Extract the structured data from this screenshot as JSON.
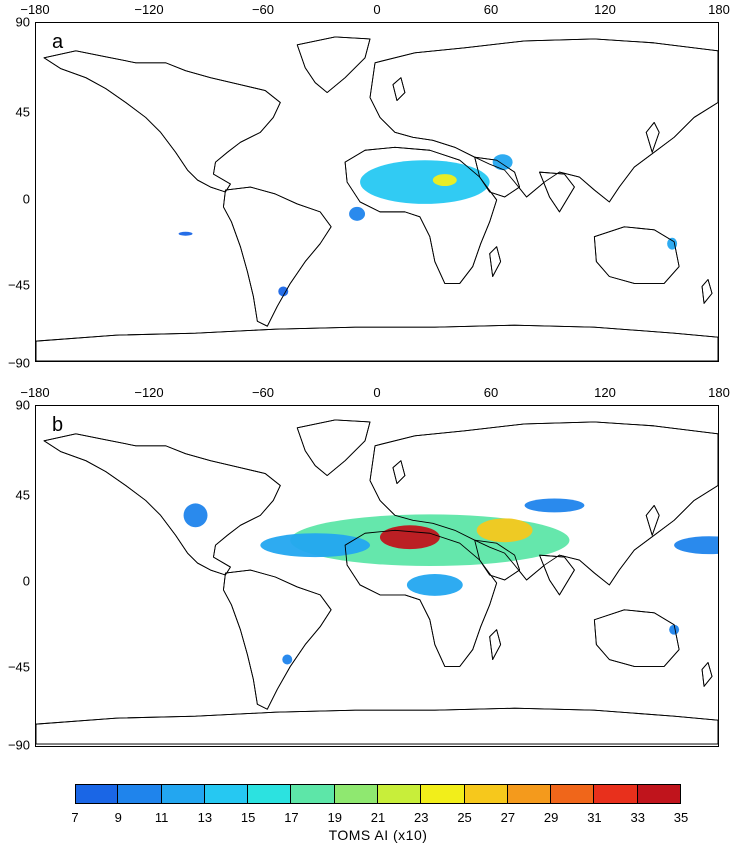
{
  "panels": [
    {
      "letter": "a",
      "x_ticks": [
        "−180",
        "−120",
        "−60",
        "0",
        "60",
        "120",
        "180"
      ],
      "y_ticks": [
        "90",
        "45",
        "0",
        "−45",
        "−90"
      ],
      "features": [
        {
          "region": "Sahara and Sahel",
          "level": 13
        },
        {
          "region": "Lake Chad area",
          "level": 23
        },
        {
          "region": "Arabian Peninsula",
          "level": 11
        },
        {
          "region": "Atlantic west of Africa",
          "level": 9
        },
        {
          "region": "South Atlantic",
          "level": 7
        },
        {
          "region": "Argentina",
          "level": 7
        },
        {
          "region": "Australia",
          "level": 11
        }
      ]
    },
    {
      "letter": "b",
      "x_ticks": [
        "−180",
        "−120",
        "−60",
        "0",
        "60",
        "120",
        "180"
      ],
      "y_ticks": [
        "90",
        "45",
        "0",
        "−45",
        "−90"
      ],
      "features": [
        {
          "region": "Sahara and Sahel",
          "level": 17
        },
        {
          "region": "Mali and Niger",
          "level": 33
        },
        {
          "region": "Arabian Peninsula",
          "level": 25
        },
        {
          "region": "Central Atlantic",
          "level": 11
        },
        {
          "region": "Southern Africa",
          "level": 11
        },
        {
          "region": "Western North America",
          "level": 9
        },
        {
          "region": "Central Asia",
          "level": 9
        },
        {
          "region": "North Pacific",
          "level": 9
        },
        {
          "region": "Argentina",
          "level": 9
        },
        {
          "region": "Australia",
          "level": 9
        }
      ]
    }
  ],
  "colorbar": {
    "levels": [
      "7",
      "9",
      "11",
      "13",
      "15",
      "17",
      "19",
      "21",
      "23",
      "25",
      "27",
      "29",
      "31",
      "33",
      "35"
    ],
    "colors": [
      "#1a66e6",
      "#1f84ec",
      "#23a6f0",
      "#26c8f2",
      "#2ce2e0",
      "#5de6a8",
      "#8fe870",
      "#c8ee3a",
      "#f2ee1a",
      "#f6c81c",
      "#f49a1c",
      "#f0661a",
      "#e8301c",
      "#c0141c"
    ],
    "title": "TOMS AI (x10)"
  }
}
